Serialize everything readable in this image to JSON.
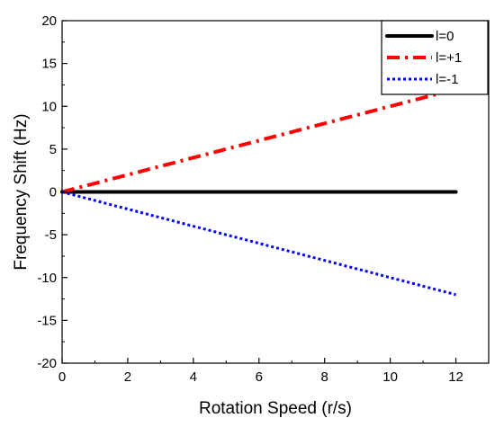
{
  "chart_data": {
    "type": "line",
    "title": "",
    "xlabel": "Rotation Speed (r/s)",
    "ylabel": "Frequency  Shift (Hz)",
    "xlim": [
      0,
      13
    ],
    "ylim": [
      -20,
      20
    ],
    "x_ticks": [
      0,
      2,
      4,
      6,
      8,
      10,
      12
    ],
    "y_ticks": [
      -20,
      -15,
      -10,
      -5,
      0,
      5,
      10,
      15,
      20
    ],
    "grid": false,
    "legend_position": "top-right",
    "series": [
      {
        "name": "l=0",
        "color": "#000000",
        "style": "solid",
        "x": [
          0,
          12
        ],
        "y": [
          0,
          0
        ]
      },
      {
        "name": "l=+1",
        "color": "#ff0000",
        "style": "dash-dot",
        "x": [
          0,
          12
        ],
        "y": [
          0,
          12
        ]
      },
      {
        "name": "l=-1",
        "color": "#0000ff",
        "style": "dotted",
        "x": [
          0,
          12
        ],
        "y": [
          0,
          -12
        ]
      }
    ]
  }
}
